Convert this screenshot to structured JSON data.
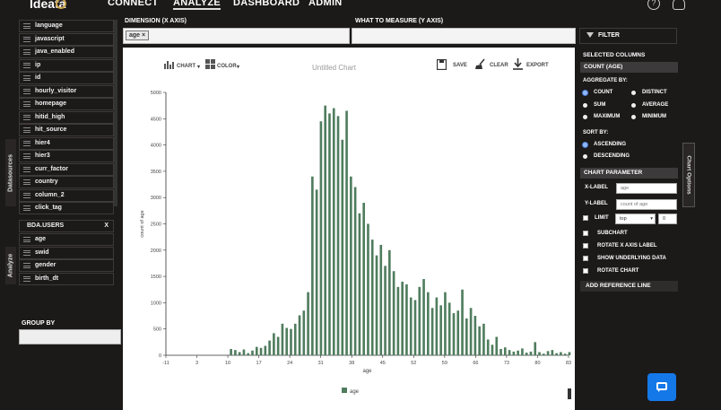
{
  "nav": {
    "logo": "Ideata",
    "items": [
      "CONNECT",
      "ANALYZE",
      "DASHBOARD",
      "ADMIN"
    ],
    "active": "ANALYZE",
    "help_icon": "help-circle-icon",
    "user_icon": "user-icon"
  },
  "side_tabs": {
    "datasources": "Datasources",
    "analyze": "Analyze"
  },
  "datasource": {
    "fields": [
      "language",
      "javascript",
      "java_enabled",
      "ip",
      "id",
      "hourly_visitor",
      "homepage",
      "hitid_high",
      "hit_source",
      "hier4",
      "hier3",
      "curr_factor",
      "country",
      "column_2",
      "click_tag"
    ],
    "table_name": "BDA.USERS",
    "table_close": "X",
    "table_fields": [
      "age",
      "swid",
      "gender",
      "birth_dt"
    ]
  },
  "group_by": {
    "label": "GROUP BY",
    "value": ""
  },
  "dimension": {
    "label": "DIMENSION (X AXIS)",
    "chip": "age ×"
  },
  "measure": {
    "label": "WHAT TO MEASURE (Y AXIS)"
  },
  "toolbar": {
    "chart": "CHART",
    "color": "COLOR",
    "title": "Untitled Chart",
    "save": "SAVE",
    "clear": "CLEAR",
    "export": "EXPORT"
  },
  "chart_data": {
    "type": "bar",
    "xlabel": "age",
    "ylabel": "count of age",
    "legend": [
      "age"
    ],
    "legend_placement": "bottom",
    "color": "#4f7d5e",
    "ylim": [
      0,
      5000
    ],
    "y_ticks": [
      0,
      500,
      1000,
      1500,
      2000,
      2500,
      3000,
      3500,
      4000,
      4500,
      5000
    ],
    "x_tick_labels": [
      "-11",
      "3",
      "10",
      "17",
      "24",
      "31",
      "38",
      "45",
      "52",
      "59",
      "66",
      "73",
      "80",
      "83"
    ],
    "x": [
      3,
      4,
      5,
      6,
      7,
      8,
      9,
      10,
      11,
      12,
      13,
      14,
      15,
      16,
      17,
      18,
      19,
      20,
      21,
      22,
      23,
      24,
      25,
      26,
      27,
      28,
      29,
      30,
      31,
      32,
      33,
      34,
      35,
      36,
      37,
      38,
      39,
      40,
      41,
      42,
      43,
      44,
      45,
      46,
      47,
      48,
      49,
      50,
      51,
      52,
      53,
      54,
      55,
      56,
      57,
      58,
      59,
      60,
      61,
      62,
      63,
      64,
      65,
      66,
      67,
      68,
      69,
      70,
      71,
      72,
      73,
      74,
      75,
      76,
      77,
      78,
      79,
      80,
      81,
      82
    ],
    "values": [
      120,
      100,
      60,
      110,
      40,
      90,
      160,
      140,
      180,
      280,
      420,
      350,
      600,
      520,
      500,
      600,
      760,
      850,
      1200,
      3400,
      3150,
      4450,
      4750,
      4600,
      4700,
      4550,
      4100,
      4650,
      3400,
      3200,
      2700,
      2900,
      2500,
      2200,
      1900,
      2100,
      1700,
      2000,
      1600,
      1300,
      1400,
      1350,
      1100,
      1050,
      1300,
      1450,
      1200,
      900,
      1100,
      950,
      1200,
      1000,
      800,
      850,
      1250,
      700,
      900,
      750,
      550,
      600,
      300,
      200,
      350,
      120,
      150,
      100,
      70,
      90,
      130,
      50,
      70,
      250,
      60,
      30,
      80,
      100,
      40,
      60,
      30,
      60
    ]
  },
  "right_panel": {
    "filter": "FILTER",
    "selected_columns": "SELECTED COLUMNS",
    "selected": "COUNT (AGE)",
    "aggregate_label": "AGGREGATE BY:",
    "aggregate": [
      "COUNT",
      "DISTINCT",
      "SUM",
      "AVERAGE",
      "MAXIMUM",
      "MINIMUM"
    ],
    "aggregate_selected": "COUNT",
    "sort_label": "SORT BY:",
    "sort": [
      "ASCENDING",
      "DESCENDING"
    ],
    "sort_selected": "ASCENDING",
    "chart_param": "CHART PARAMETER",
    "xlabel_label": "X-LABEL",
    "xlabel_value": "age",
    "ylabel_label": "Y-LABEL",
    "ylabel_value": "count of age",
    "limit_label": "LIMIT",
    "limit_select": "top",
    "limit_value": "0",
    "subchart": "SUBCHART",
    "rotate_x": "ROTATE X AXIS LABEL",
    "show_underlying": "SHOW UNDERLYING DATA",
    "rotate_chart": "ROTATE CHART",
    "add_ref": "ADD REFERENCE LINE",
    "options_tab": "Chart Options"
  }
}
